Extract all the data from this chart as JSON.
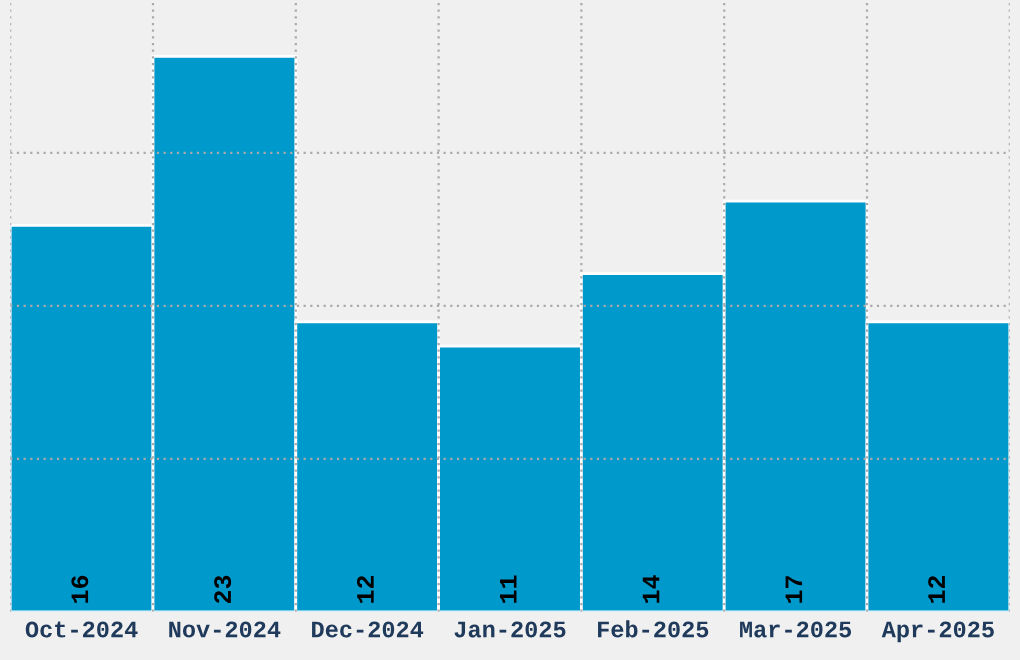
{
  "chart_data": {
    "type": "bar",
    "categories": [
      "Oct-2024",
      "Nov-2024",
      "Dec-2024",
      "Jan-2025",
      "Feb-2025",
      "Mar-2025",
      "Apr-2025"
    ],
    "values": [
      16,
      23,
      12,
      11,
      14,
      17,
      12
    ],
    "color": "#0099cc",
    "ylim": [
      0,
      25.33
    ],
    "yticks": [
      {
        "value": 6.33,
        "label": null
      },
      {
        "value": 12.67,
        "label": null
      },
      {
        "value": 19,
        "label": null
      }
    ],
    "tick_labels": "x",
    "grid": true,
    "data_labels": true
  }
}
